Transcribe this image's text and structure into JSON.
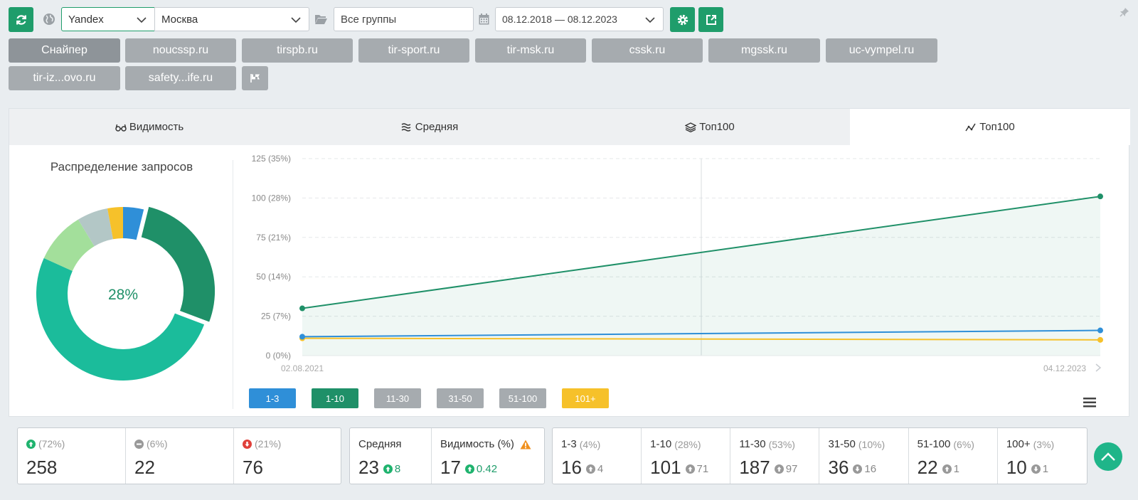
{
  "toolbar": {
    "search_engine": "Yandex",
    "region": "Москва",
    "groups": "Все группы",
    "date_range": "08.12.2018 — 08.12.2023"
  },
  "sites": [
    "Снайпер",
    "noucssp.ru",
    "tirspb.ru",
    "tir-sport.ru",
    "tir-msk.ru",
    "cssk.ru",
    "mgssk.ru",
    "uc-vympel.ru",
    "tir-iz...ovo.ru",
    "safety...ife.ru"
  ],
  "content_tabs": [
    {
      "label": "Видимость",
      "icon": "glasses-icon"
    },
    {
      "label": "Средняя",
      "icon": "wave-icon"
    },
    {
      "label": "Топ100",
      "icon": "layers-icon"
    },
    {
      "label": "Топ100",
      "icon": "trend-icon"
    }
  ],
  "distribution": {
    "title": "Распределение запросов",
    "center_label": "28%"
  },
  "colors": {
    "green": "#1f9d6b",
    "blue": "#2f8fd8",
    "yellow": "#f6c12a",
    "grey": "#a6abaf"
  },
  "chart_data": [
    {
      "type": "pie",
      "categories": [
        "1-3",
        "1-10",
        "11-30",
        "31-50",
        "51-100",
        "101+"
      ],
      "values": [
        4,
        28,
        53,
        10,
        6,
        3
      ],
      "colors": [
        "#2f8fd8",
        "#1f9068",
        "#1bbc9b",
        "#a3df9b",
        "#b3c7c6",
        "#f6c12a"
      ]
    },
    {
      "type": "line",
      "x": [
        "02.08.2021",
        "04.12.2023"
      ],
      "x_tick_labels": [
        "02.08.2021",
        "04.12.2023"
      ],
      "y_tick_labels": [
        "0 (0%)",
        "25 (7%)",
        "50 (14%)",
        "75 (21%)",
        "100 (28%)",
        "125 (35%)"
      ],
      "ylim": [
        0,
        125
      ],
      "series": [
        {
          "name": "1-10",
          "values": [
            30,
            101
          ],
          "color": "#1f9068"
        },
        {
          "name": "1-3",
          "values": [
            12,
            16
          ],
          "color": "#2f8fd8"
        },
        {
          "name": "101+",
          "values": [
            11,
            10
          ],
          "color": "#f6c12a"
        }
      ],
      "legend": [
        "1-3",
        "1-10",
        "11-30",
        "31-50",
        "51-100",
        "101+"
      ],
      "legend_colors": [
        "#2f8fd8",
        "#1f9068",
        "#a6abaf",
        "#a6abaf",
        "#a6abaf",
        "#f6c12a"
      ]
    }
  ],
  "stats": {
    "up": {
      "pct": "(72%)",
      "value": "258"
    },
    "same": {
      "pct": "(6%)",
      "value": "22"
    },
    "down": {
      "pct": "(21%)",
      "value": "76"
    },
    "avg": {
      "label": "Средняя",
      "value": "23",
      "delta": "8"
    },
    "vis": {
      "label": "Видимость (%)",
      "value": "17",
      "delta": "0.42"
    },
    "ranges": [
      {
        "label": "1-3",
        "pct": "(4%)",
        "value": "16",
        "delta": "4",
        "dir": "up"
      },
      {
        "label": "1-10",
        "pct": "(28%)",
        "value": "101",
        "delta": "71",
        "dir": "up"
      },
      {
        "label": "11-30",
        "pct": "(53%)",
        "value": "187",
        "delta": "97",
        "dir": "up"
      },
      {
        "label": "31-50",
        "pct": "(10%)",
        "value": "36",
        "delta": "16",
        "dir": "down"
      },
      {
        "label": "51-100",
        "pct": "(6%)",
        "value": "22",
        "delta": "1",
        "dir": "up"
      },
      {
        "label": "100+",
        "pct": "(3%)",
        "value": "10",
        "delta": "1",
        "dir": "down"
      }
    ]
  }
}
